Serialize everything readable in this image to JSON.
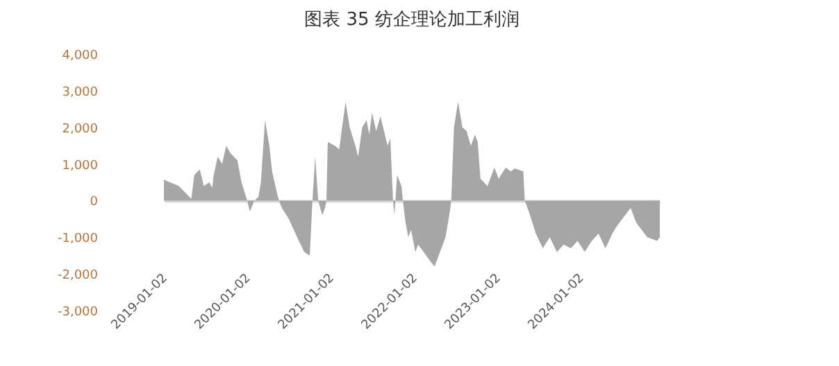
{
  "chart_data": {
    "type": "area",
    "title": "图表 35  纺企理论加工利润",
    "x": [
      "2019-01-02",
      "2019-03-08",
      "2019-05-02",
      "2019-05-15",
      "2019-06-08",
      "2019-06-26",
      "2019-07-20",
      "2019-08-02",
      "2019-08-08",
      "2019-08-26",
      "2019-09-14",
      "2019-10-02",
      "2019-10-20",
      "2019-11-20",
      "2019-12-08",
      "2020-01-02",
      "2020-01-14",
      "2020-02-02",
      "2020-02-20",
      "2020-03-02",
      "2020-03-20",
      "2020-04-08",
      "2020-04-20",
      "2020-05-08",
      "2020-05-20",
      "2020-06-02",
      "2020-07-02",
      "2020-08-08",
      "2020-09-08",
      "2020-10-02",
      "2020-10-14",
      "2020-10-26",
      "2020-11-08",
      "2020-11-26",
      "2020-12-08",
      "2020-12-14",
      "2020-12-20",
      "2021-01-20",
      "2021-02-08",
      "2021-03-08",
      "2021-03-26",
      "2021-04-20",
      "2021-05-02",
      "2021-05-20",
      "2021-06-08",
      "2021-06-20",
      "2021-07-02",
      "2021-07-20",
      "2021-08-08",
      "2021-09-08",
      "2021-09-20",
      "2021-10-02",
      "2021-10-08",
      "2021-10-20",
      "2021-11-08",
      "2021-11-14",
      "2021-11-26",
      "2021-12-08",
      "2021-12-20",
      "2022-01-08",
      "2022-01-20",
      "2022-03-20",
      "2022-04-02",
      "2022-04-20",
      "2022-05-20",
      "2022-06-08",
      "2022-06-14",
      "2022-06-26",
      "2022-07-14",
      "2022-08-02",
      "2022-08-20",
      "2022-09-08",
      "2022-09-26",
      "2022-10-08",
      "2022-10-20",
      "2022-11-20",
      "2022-12-20",
      "2023-01-08",
      "2023-02-08",
      "2023-03-02",
      "2023-03-20",
      "2023-04-26",
      "2023-05-02",
      "2023-05-20",
      "2023-06-20",
      "2023-07-20",
      "2023-08-20",
      "2023-09-20",
      "2023-10-20",
      "2023-11-20",
      "2023-12-20",
      "2024-01-20",
      "2024-02-20",
      "2024-03-20",
      "2024-04-20",
      "2024-05-20",
      "2024-06-08",
      "2024-08-08",
      "2024-09-02",
      "2024-10-20",
      "2024-12-02",
      "2024-12-14"
    ],
    "series": [
      {
        "color": "#a6a6a6",
        "values": [
          570,
          400,
          50,
          700,
          850,
          400,
          500,
          350,
          700,
          1200,
          1000,
          1500,
          1300,
          1100,
          500,
          0,
          -300,
          0,
          100,
          500,
          2200,
          1500,
          800,
          300,
          0,
          -200,
          -500,
          -1000,
          -1400,
          -1500,
          0,
          1200,
          0,
          -400,
          -200,
          0,
          1600,
          1500,
          1400,
          2700,
          2000,
          1500,
          1200,
          2000,
          2200,
          1800,
          2400,
          1900,
          2300,
          1500,
          1700,
          0,
          -400,
          700,
          400,
          0,
          -600,
          -1000,
          -800,
          -1400,
          -1200,
          -1700,
          -1800,
          -1500,
          -1000,
          -300,
          0,
          2000,
          2700,
          2000,
          1900,
          1500,
          1800,
          1600,
          600,
          400,
          900,
          600,
          900,
          800,
          880,
          800,
          0,
          -300,
          -900,
          -1300,
          -1000,
          -1400,
          -1200,
          -1300,
          -1100,
          -1400,
          -1100,
          -900,
          -1300,
          -900,
          -700,
          -200,
          -600,
          -1000,
          -1100,
          -1000
        ]
      }
    ],
    "xlim": [
      "2019-01-02",
      "2024-12-14"
    ],
    "xticks": [
      "2019-01-02",
      "2020-01-02",
      "2021-01-02",
      "2022-01-02",
      "2023-01-02",
      "2024-01-02"
    ],
    "ylim": [
      -3000,
      4000
    ],
    "yticks": [
      {
        "value": -3000,
        "label": "-3,000"
      },
      {
        "value": -2000,
        "label": "-2,000"
      },
      {
        "value": -1000,
        "label": "-1,000"
      },
      0,
      {
        "value": 1000,
        "label": "1,000"
      },
      {
        "value": 2000,
        "label": "2,000"
      },
      {
        "value": 3000,
        "label": "3,000"
      },
      {
        "value": 4000,
        "label": "4,000"
      }
    ]
  }
}
